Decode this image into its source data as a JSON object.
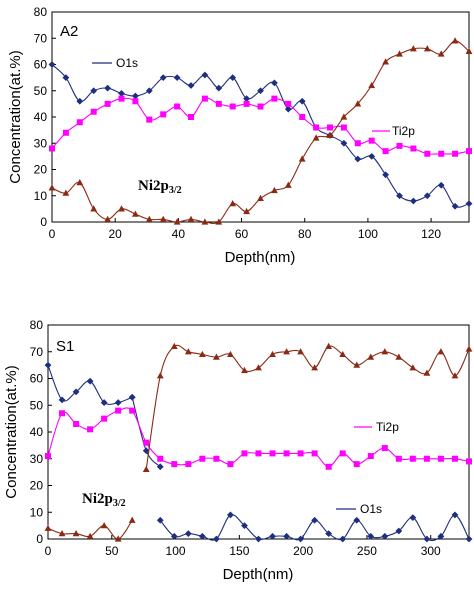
{
  "chart_data": [
    {
      "type": "line",
      "title": "A2",
      "xlabel": "Depth(nm)",
      "ylabel": "Concentration(at.%)",
      "xlim": [
        0,
        132
      ],
      "ylim": [
        0,
        80
      ],
      "xticks": [
        0,
        20,
        40,
        60,
        80,
        100,
        120
      ],
      "yticks": [
        0,
        10,
        20,
        30,
        40,
        50,
        60,
        70,
        80
      ],
      "grid": false,
      "series": [
        {
          "name": "O1s",
          "color": "#1F2F7F",
          "marker": "diamond",
          "x": [
            0,
            4.4,
            8.8,
            13.2,
            17.6,
            22,
            26.4,
            30.8,
            35.2,
            39.6,
            44,
            48.4,
            52.8,
            57.2,
            61.6,
            66,
            70.4,
            74.8,
            79.2,
            83.6,
            88,
            92.4,
            96.8,
            101.2,
            105.6,
            110,
            114.4,
            118.8,
            123.2,
            127.6,
            132
          ],
          "y": [
            60,
            55,
            46,
            50,
            51,
            49,
            48,
            50,
            55,
            55,
            52,
            56,
            51,
            55,
            47,
            50,
            53,
            43,
            46,
            36,
            33,
            30,
            24,
            25,
            18,
            10,
            8,
            10,
            14,
            6,
            7
          ]
        },
        {
          "name": "Ti2p",
          "color": "#FF00FF",
          "marker": "square",
          "x": [
            0,
            4.4,
            8.8,
            13.2,
            17.6,
            22,
            26.4,
            30.8,
            35.2,
            39.6,
            44,
            48.4,
            52.8,
            57.2,
            61.6,
            66,
            70.4,
            74.8,
            79.2,
            83.6,
            88,
            92.4,
            96.8,
            101.2,
            105.6,
            110,
            114.4,
            118.8,
            123.2,
            127.6,
            132
          ],
          "y": [
            28,
            34,
            38,
            42,
            45,
            47,
            46,
            39,
            41,
            44,
            40,
            47,
            45,
            44,
            45,
            44,
            47,
            45,
            40,
            36,
            36,
            36,
            30,
            31,
            27,
            29,
            28,
            26,
            26,
            26,
            27
          ]
        },
        {
          "name": "Ni2p3/2",
          "color": "#8B2A14",
          "marker": "triangle",
          "x": [
            0,
            4.4,
            8.8,
            13.2,
            17.6,
            22,
            26.4,
            30.8,
            35.2,
            39.6,
            44,
            48.4,
            52.8,
            57.2,
            61.6,
            66,
            70.4,
            74.8,
            79.2,
            83.6,
            88,
            92.4,
            96.8,
            101.2,
            105.6,
            110,
            114.4,
            118.8,
            123.2,
            127.6,
            132
          ],
          "y": [
            13,
            11,
            15,
            5,
            1,
            5,
            3,
            1,
            1,
            0,
            1,
            0,
            0,
            7,
            4,
            9,
            12,
            14,
            24,
            32,
            33,
            40,
            45,
            52,
            61,
            64,
            66,
            66,
            64,
            69,
            65
          ]
        }
      ],
      "labels": {
        "panel": "A2",
        "o1s": "O1s",
        "ti2p": "Ti2p",
        "ni_main": "Ni2p",
        "ni_sub": "3/2"
      }
    },
    {
      "type": "line",
      "title": "S1",
      "xlabel": "Depth(nm)",
      "ylabel": "Concentration(at.%)",
      "xlim": [
        0,
        330
      ],
      "ylim": [
        0,
        80
      ],
      "xticks": [
        0,
        50,
        100,
        150,
        200,
        250,
        300
      ],
      "yticks": [
        0,
        10,
        20,
        30,
        40,
        50,
        60,
        70,
        80
      ],
      "grid": false,
      "series": [
        {
          "name": "O1s",
          "color": "#1F2F7F",
          "marker": "diamond",
          "segments": [
            {
              "x": [
                0,
                11,
                22,
                33,
                44,
                55,
                66
              ],
              "y": [
                65,
                52,
                55,
                59,
                51,
                51,
                53
              ]
            },
            {
              "x": [
                66,
                77,
                88
              ],
              "y": [
                53,
                33,
                27
              ]
            },
            {
              "x": [
                88,
                99,
                110,
                121,
                132,
                143,
                154,
                165,
                176,
                187,
                198,
                209,
                220,
                231,
                242,
                253,
                264,
                275,
                286,
                297,
                308,
                319,
                330
              ],
              "y": [
                7,
                1,
                2,
                1,
                0,
                9,
                5,
                0,
                1,
                1,
                0,
                7,
                2,
                0,
                7,
                1,
                1,
                3,
                8,
                0,
                1,
                9,
                0
              ]
            }
          ]
        },
        {
          "name": "Ti2p",
          "color": "#FF00FF",
          "marker": "square",
          "x": [
            0,
            11,
            22,
            33,
            44,
            55,
            66,
            77,
            88,
            99,
            110,
            121,
            132,
            143,
            154,
            165,
            176,
            187,
            198,
            209,
            220,
            231,
            242,
            253,
            264,
            275,
            286,
            297,
            308,
            319,
            330
          ],
          "y": [
            31,
            47,
            43,
            41,
            45,
            48,
            48,
            36,
            30,
            28,
            28,
            30,
            30,
            28,
            32,
            32,
            32,
            32,
            32,
            32,
            27,
            32,
            28,
            31,
            34,
            30,
            30,
            30,
            30,
            30,
            29
          ]
        },
        {
          "name": "Ni2p3/2",
          "color": "#8B2A14",
          "marker": "triangle",
          "segments": [
            {
              "x": [
                0,
                11,
                22,
                33,
                44,
                55,
                66
              ],
              "y": [
                4,
                2,
                2,
                1,
                5,
                0,
                7
              ]
            },
            {
              "x": [
                77,
                88,
                99,
                110,
                121,
                132,
                143,
                154,
                165,
                176,
                187,
                198,
                209,
                220,
                231,
                242,
                253,
                264,
                275,
                286,
                297,
                308,
                319,
                330
              ],
              "y": [
                26,
                61,
                72,
                70,
                69,
                68,
                69,
                63,
                64,
                69,
                70,
                70,
                64,
                72,
                69,
                65,
                68,
                70,
                68,
                64,
                62,
                70,
                61,
                71
              ]
            }
          ]
        }
      ],
      "labels": {
        "panel": "S1",
        "o1s": "O1s",
        "ti2p": "Ti2p",
        "ni_main": "Ni2p",
        "ni_sub": "3/2"
      }
    }
  ]
}
